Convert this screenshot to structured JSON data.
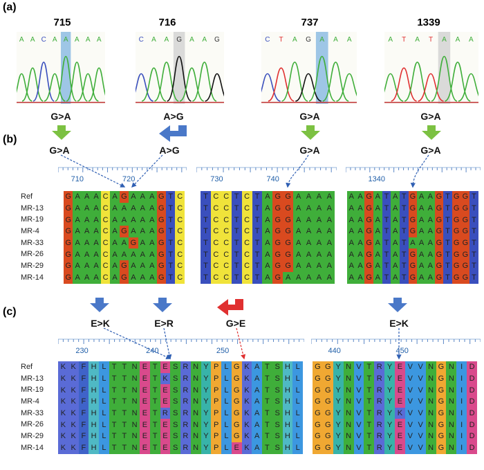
{
  "panels": {
    "a": "(a)",
    "b": "(b)",
    "c": "(c)"
  },
  "colors": {
    "A": "#3fae3a",
    "C": "#f0e33a",
    "G": "#d94a1f",
    "T": "#3a4fbd"
  },
  "chromatograms": [
    {
      "position": "715",
      "bases": "AACAAAAA",
      "highlight_index": 4,
      "highlight_color": "#7fb4e0",
      "dna_change": "G>A"
    },
    {
      "position": "716",
      "bases": "CAAGAAG",
      "highlight_index": 3,
      "highlight_color": "#cfcfcf",
      "dna_change": "A>G"
    },
    {
      "position": "737",
      "bases": "CTAGAAA",
      "highlight_index": 4,
      "highlight_color": "#7fb4e0",
      "dna_change": "G>A"
    },
    {
      "position": "1339",
      "bases": "ATATAAA",
      "highlight_index": 4,
      "highlight_color": "#cfcfcf",
      "dna_change": "G>A"
    }
  ],
  "dna_labels": [
    "G>A",
    "A>G",
    "G>A",
    "G>A"
  ],
  "row_labels": [
    "Ref",
    "MR-13",
    "MR-19",
    "MR-4",
    "MR-33",
    "MR-26",
    "MR-29",
    "MR-14"
  ],
  "dna_alignments": [
    {
      "ruler_numbers": [
        "710",
        "720"
      ],
      "rows": [
        "GAAACAGAAAGTC",
        "GAAACAAAAAGTC",
        "GAAACAAAAAGTC",
        "GAAACAGAAAGTC",
        "GAAACAAGAAGTC",
        "GAAACAAAAAGTC",
        "GAAACAGAAAGTC",
        "GAAACAGAAAGTC"
      ]
    },
    {
      "ruler_numbers": [
        "730",
        "740"
      ],
      "rows": [
        "TCCTCTAGGAAAA",
        "TCCTCTAGGAAAA",
        "TCCTCTAGGAAAA",
        "TCCTCTAGGAAAA",
        "TCCTCTAGGAAAA",
        "TCCTCTAGGAAAA",
        "TCCTCTAGGAAAA",
        "TCCTCTAGAAAAA"
      ]
    },
    {
      "ruler_numbers": [
        "1340"
      ],
      "rows": [
        "AAGATATGAAGTGGT",
        "AAGATATGAAGTGGT",
        "AAGATATGAAGTGGT",
        "AAGATATGAAGTGGT",
        "AAGATATAAAGTGGT",
        "AAGATATGAAGTGGT",
        "AAGATATGAAGTGGT",
        "AAGATATGAAGTGGT"
      ]
    }
  ],
  "protein_labels": [
    "E>K",
    "E>R",
    "G>E",
    "E>K"
  ],
  "protein_alignments": [
    {
      "ruler_numbers": [
        "230",
        "240",
        "250"
      ],
      "rows": [
        "KKFHLTTNETESRNYPLGKATSHL",
        "KKFHLTTNETKSRNYPLGKATSHL",
        "KKFHLTTNETESRNYPLGKATSHL",
        "KKFHLTTNETESRNYPLGKATSHL",
        "KKFHLTTNETRSRNYPLGKATSHL",
        "KKFHLTTNETESRNYPLGKATSHL",
        "KKFHLTTNETESRNYPLGKATSHL",
        "KKFHLTTNETESRNYPLEKATSHL"
      ]
    },
    {
      "ruler_numbers": [
        "440",
        "450"
      ],
      "rows": [
        "GGYNVTRYEVVNGNID",
        "GGYNVTRYEVVNGNID",
        "GGYNVTRYEVVNGNID",
        "GGYNVTRYEVVNGNID",
        "GGYNVTRYKVVNGNID",
        "GGYNVTRYEVVNGNID",
        "GGYNVTRYEVVNGNID",
        "GGYNVTRYEVVNGNID"
      ]
    }
  ],
  "aa_colors": {
    "K": "#5a6bd6",
    "R": "#5a6bd6",
    "F": "#3f63c9",
    "H": "#4fb9c4",
    "L": "#3c97e0",
    "T": "#3fae3a",
    "N": "#3fae3a",
    "E": "#d94a8c",
    "S": "#3fae3a",
    "Y": "#38b3a9",
    "P": "#f0a832",
    "G": "#f0a832",
    "A": "#3c97e0",
    "V": "#3c97e0",
    "I": "#3c97e0",
    "D": "#d94a8c"
  }
}
